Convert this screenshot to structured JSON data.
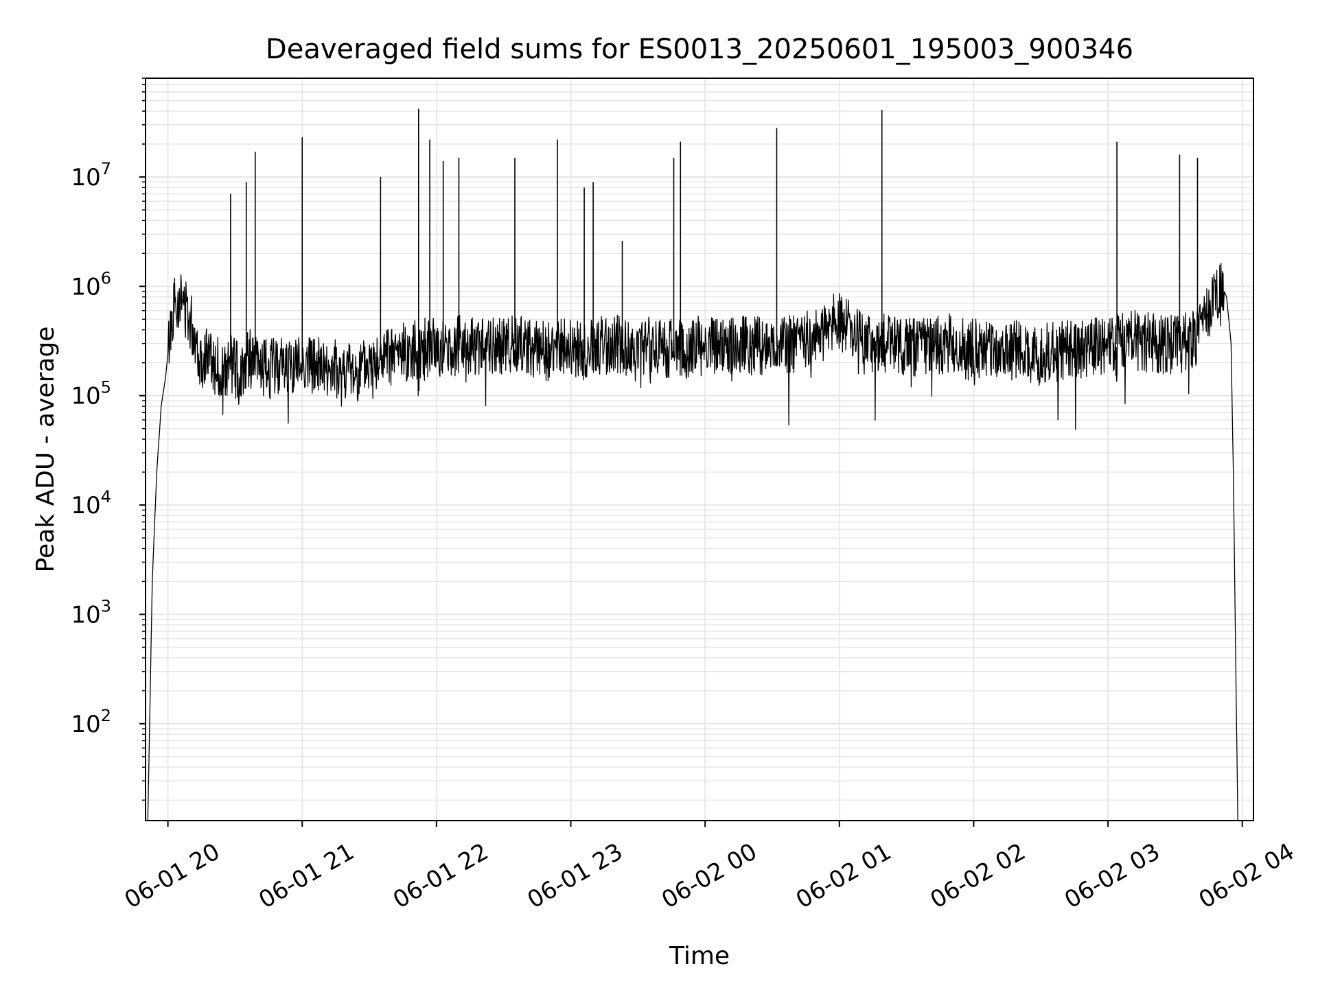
{
  "chart_data": {
    "type": "line",
    "title": "Deaveraged field sums for ES0013_20250601_195003_900346",
    "xlabel": "Time",
    "ylabel": "Peak ADU - average",
    "yscale": "log",
    "xlim": [
      "2025-06-01 19:50",
      "2025-06-02 04:05"
    ],
    "ylim": [
      13,
      80000000
    ],
    "grid": true,
    "line_color": "#000000",
    "grid_color": "#e6e6e6",
    "x_ticks": [
      "06-01 20",
      "06-01 21",
      "06-01 22",
      "06-01 23",
      "06-02 00",
      "06-02 01",
      "06-02 02",
      "06-02 03",
      "06-02 04"
    ],
    "y_ticks": [
      {
        "base": "10",
        "exp": "2"
      },
      {
        "base": "10",
        "exp": "3"
      },
      {
        "base": "10",
        "exp": "4"
      },
      {
        "base": "10",
        "exp": "5"
      },
      {
        "base": "10",
        "exp": "6"
      },
      {
        "base": "10",
        "exp": "7"
      }
    ],
    "series": [
      {
        "x": [
          "2025-06-01 19:51",
          "2025-06-01 19:52",
          "2025-06-01 19:53",
          "2025-06-01 19:55",
          "2025-06-01 19:57",
          "2025-06-01 19:59",
          "2025-06-01 20:01",
          "2025-06-01 20:03",
          "2025-06-01 20:05",
          "2025-06-01 20:07",
          "2025-06-01 20:10",
          "2025-06-01 20:13",
          "2025-06-01 20:15",
          "2025-06-01 20:17",
          "2025-06-01 20:20",
          "2025-06-01 20:23",
          "2025-06-01 20:26",
          "2025-06-01 20:28",
          "2025-06-01 20:30",
          "2025-06-01 20:32",
          "2025-06-01 20:36",
          "2025-06-01 20:40",
          "2025-06-01 20:45",
          "2025-06-01 20:50",
          "2025-06-01 20:55",
          "2025-06-01 21:00",
          "2025-06-01 21:06",
          "2025-06-01 21:12",
          "2025-06-01 21:18",
          "2025-06-01 21:24",
          "2025-06-01 21:30",
          "2025-06-01 21:35",
          "2025-06-01 21:40",
          "2025-06-01 21:46",
          "2025-06-01 21:52",
          "2025-06-01 21:58",
          "2025-06-01 22:05",
          "2025-06-01 22:12",
          "2025-06-01 22:20",
          "2025-06-01 22:28",
          "2025-06-01 22:35",
          "2025-06-01 22:42",
          "2025-06-01 22:50",
          "2025-06-01 22:57",
          "2025-06-01 23:05",
          "2025-06-01 23:12",
          "2025-06-01 23:20",
          "2025-06-01 23:28",
          "2025-06-01 23:35",
          "2025-06-01 23:42",
          "2025-06-01 23:50",
          "2025-06-01 23:57",
          "2025-06-02 00:05",
          "2025-06-02 00:12",
          "2025-06-02 00:20",
          "2025-06-02 00:28",
          "2025-06-02 00:35",
          "2025-06-02 00:42",
          "2025-06-02 00:50",
          "2025-06-02 00:55",
          "2025-06-02 01:00",
          "2025-06-02 01:05",
          "2025-06-02 01:10",
          "2025-06-02 01:15",
          "2025-06-02 01:20",
          "2025-06-02 01:28",
          "2025-06-02 01:35",
          "2025-06-02 01:42",
          "2025-06-02 01:50",
          "2025-06-02 01:57",
          "2025-06-02 02:05",
          "2025-06-02 02:12",
          "2025-06-02 02:20",
          "2025-06-02 02:28",
          "2025-06-02 02:35",
          "2025-06-02 02:42",
          "2025-06-02 02:50",
          "2025-06-02 02:57",
          "2025-06-02 03:05",
          "2025-06-02 03:12",
          "2025-06-02 03:20",
          "2025-06-02 03:27",
          "2025-06-02 03:33",
          "2025-06-02 03:38",
          "2025-06-02 03:42",
          "2025-06-02 03:45",
          "2025-06-02 03:48",
          "2025-06-02 03:51",
          "2025-06-02 03:53",
          "2025-06-02 03:55",
          "2025-06-02 03:56",
          "2025-06-02 03:57",
          "2025-06-02 03:58"
        ],
        "y": [
          13,
          150,
          2000,
          20000,
          80000,
          150000,
          400000,
          700000,
          800000,
          700000,
          500000,
          300000,
          200000,
          250000,
          200000,
          180000,
          150000,
          200000,
          180000,
          160000,
          220000,
          190000,
          170000,
          200000,
          180000,
          200000,
          190000,
          170000,
          180000,
          160000,
          190000,
          210000,
          230000,
          250000,
          270000,
          280000,
          260000,
          300000,
          280000,
          270000,
          300000,
          280000,
          250000,
          270000,
          260000,
          280000,
          300000,
          250000,
          280000,
          270000,
          260000,
          290000,
          270000,
          280000,
          300000,
          270000,
          290000,
          310000,
          350000,
          420000,
          500000,
          400000,
          300000,
          280000,
          300000,
          290000,
          270000,
          280000,
          300000,
          260000,
          280000,
          250000,
          260000,
          240000,
          250000,
          260000,
          270000,
          280000,
          300000,
          320000,
          310000,
          290000,
          300000,
          330000,
          400000,
          600000,
          900000,
          1000000,
          800000,
          300000,
          20000,
          500,
          13
        ]
      },
      {
        "x": [
          "2025-06-01 20:28",
          "2025-06-01 20:35",
          "2025-06-01 20:39",
          "2025-06-01 21:00",
          "2025-06-01 21:35",
          "2025-06-01 21:52",
          "2025-06-01 21:57",
          "2025-06-01 22:03",
          "2025-06-01 22:10",
          "2025-06-01 22:35",
          "2025-06-01 22:54",
          "2025-06-01 23:06",
          "2025-06-01 23:10",
          "2025-06-01 23:23",
          "2025-06-01 23:46",
          "2025-06-01 23:49",
          "2025-06-02 00:32",
          "2025-06-02 01:19",
          "2025-06-02 03:04",
          "2025-06-02 03:32",
          "2025-06-02 03:40"
        ],
        "y": [
          7000000,
          9000000,
          17000000,
          23000000,
          10000000,
          42000000,
          22000000,
          14000000,
          15000000,
          15000000,
          22000000,
          8000000,
          9000000,
          2600000,
          15000000,
          21000000,
          28000000,
          41000000,
          21000000,
          16000000,
          15000000
        ]
      }
    ]
  }
}
